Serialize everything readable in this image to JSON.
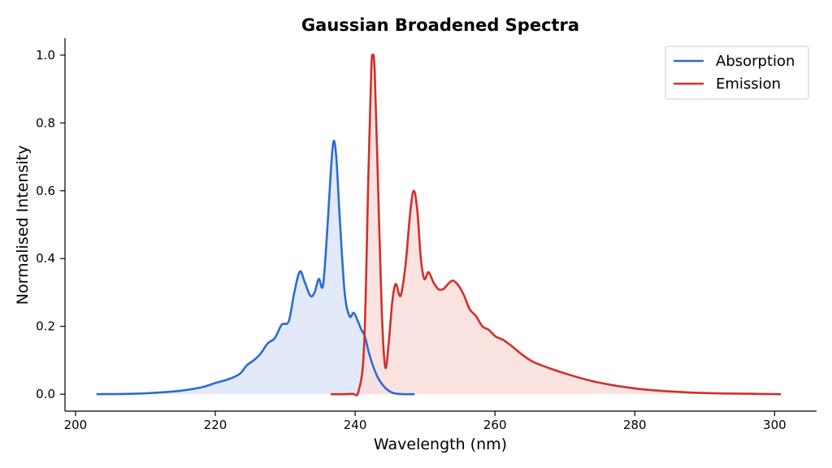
{
  "chart_data": {
    "type": "area",
    "title": "Gaussian Broadened Spectra",
    "xlabel": "Wavelength (nm)",
    "ylabel": "Normalised Intensity",
    "xlim": [
      198.5,
      306
    ],
    "ylim": [
      -0.05,
      1.05
    ],
    "xticks": [
      200,
      220,
      240,
      260,
      280,
      300
    ],
    "yticks": [
      0.0,
      0.2,
      0.4,
      0.6,
      0.8,
      1.0
    ],
    "xtick_labels": [
      "200",
      "220",
      "240",
      "260",
      "280",
      "300"
    ],
    "ytick_labels": [
      "0.0",
      "0.2",
      "0.4",
      "0.6",
      "0.8",
      "1.0"
    ],
    "grid": false,
    "legend_position": "top-right",
    "series": [
      {
        "name": "Absorption",
        "color": "#2b6bd6",
        "fill": "#dde6f8",
        "points": [
          [
            203.0,
            0.0
          ],
          [
            208.0,
            0.001
          ],
          [
            212.0,
            0.005
          ],
          [
            215.0,
            0.01
          ],
          [
            218.0,
            0.02
          ],
          [
            220.0,
            0.033
          ],
          [
            222.0,
            0.045
          ],
          [
            223.5,
            0.06
          ],
          [
            224.5,
            0.085
          ],
          [
            225.5,
            0.1
          ],
          [
            226.5,
            0.12
          ],
          [
            227.5,
            0.15
          ],
          [
            228.5,
            0.165
          ],
          [
            229.5,
            0.205
          ],
          [
            230.5,
            0.215
          ],
          [
            231.3,
            0.3
          ],
          [
            232.1,
            0.362
          ],
          [
            232.8,
            0.33
          ],
          [
            233.6,
            0.29
          ],
          [
            234.2,
            0.3
          ],
          [
            234.8,
            0.34
          ],
          [
            235.4,
            0.32
          ],
          [
            236.0,
            0.48
          ],
          [
            236.5,
            0.65
          ],
          [
            236.9,
            0.745
          ],
          [
            237.3,
            0.7
          ],
          [
            237.8,
            0.52
          ],
          [
            238.5,
            0.3
          ],
          [
            239.2,
            0.23
          ],
          [
            239.8,
            0.24
          ],
          [
            240.4,
            0.215
          ],
          [
            240.9,
            0.19
          ],
          [
            241.4,
            0.17
          ],
          [
            242.0,
            0.12
          ],
          [
            242.8,
            0.07
          ],
          [
            243.5,
            0.04
          ],
          [
            244.5,
            0.015
          ],
          [
            245.5,
            0.003
          ],
          [
            247.0,
            0.0
          ],
          [
            248.5,
            0.0
          ]
        ]
      },
      {
        "name": "Emission",
        "color": "#d12f2a",
        "fill": "#fadedd",
        "points": [
          [
            236.5,
            0.0
          ],
          [
            239.5,
            0.001
          ],
          [
            240.5,
            0.01
          ],
          [
            241.3,
            0.15
          ],
          [
            241.9,
            0.65
          ],
          [
            242.3,
            0.95
          ],
          [
            242.5,
            1.0
          ],
          [
            242.8,
            0.95
          ],
          [
            243.3,
            0.6
          ],
          [
            243.8,
            0.25
          ],
          [
            244.3,
            0.08
          ],
          [
            244.8,
            0.15
          ],
          [
            245.3,
            0.27
          ],
          [
            245.8,
            0.325
          ],
          [
            246.5,
            0.29
          ],
          [
            247.2,
            0.38
          ],
          [
            247.9,
            0.54
          ],
          [
            248.4,
            0.6
          ],
          [
            248.9,
            0.54
          ],
          [
            249.4,
            0.4
          ],
          [
            249.9,
            0.34
          ],
          [
            250.5,
            0.36
          ],
          [
            251.2,
            0.33
          ],
          [
            251.9,
            0.31
          ],
          [
            252.6,
            0.31
          ],
          [
            253.3,
            0.325
          ],
          [
            254.0,
            0.335
          ],
          [
            254.8,
            0.32
          ],
          [
            255.6,
            0.29
          ],
          [
            256.4,
            0.25
          ],
          [
            257.3,
            0.23
          ],
          [
            258.2,
            0.2
          ],
          [
            259.1,
            0.19
          ],
          [
            260.1,
            0.17
          ],
          [
            261.2,
            0.16
          ],
          [
            262.5,
            0.14
          ],
          [
            264.0,
            0.115
          ],
          [
            265.5,
            0.095
          ],
          [
            268.0,
            0.075
          ],
          [
            271.0,
            0.055
          ],
          [
            274.0,
            0.038
          ],
          [
            277.0,
            0.026
          ],
          [
            280.0,
            0.017
          ],
          [
            283.0,
            0.011
          ],
          [
            286.0,
            0.007
          ],
          [
            289.0,
            0.004
          ],
          [
            293.0,
            0.002
          ],
          [
            297.0,
            0.001
          ],
          [
            300.9,
            0.0
          ]
        ]
      }
    ]
  }
}
